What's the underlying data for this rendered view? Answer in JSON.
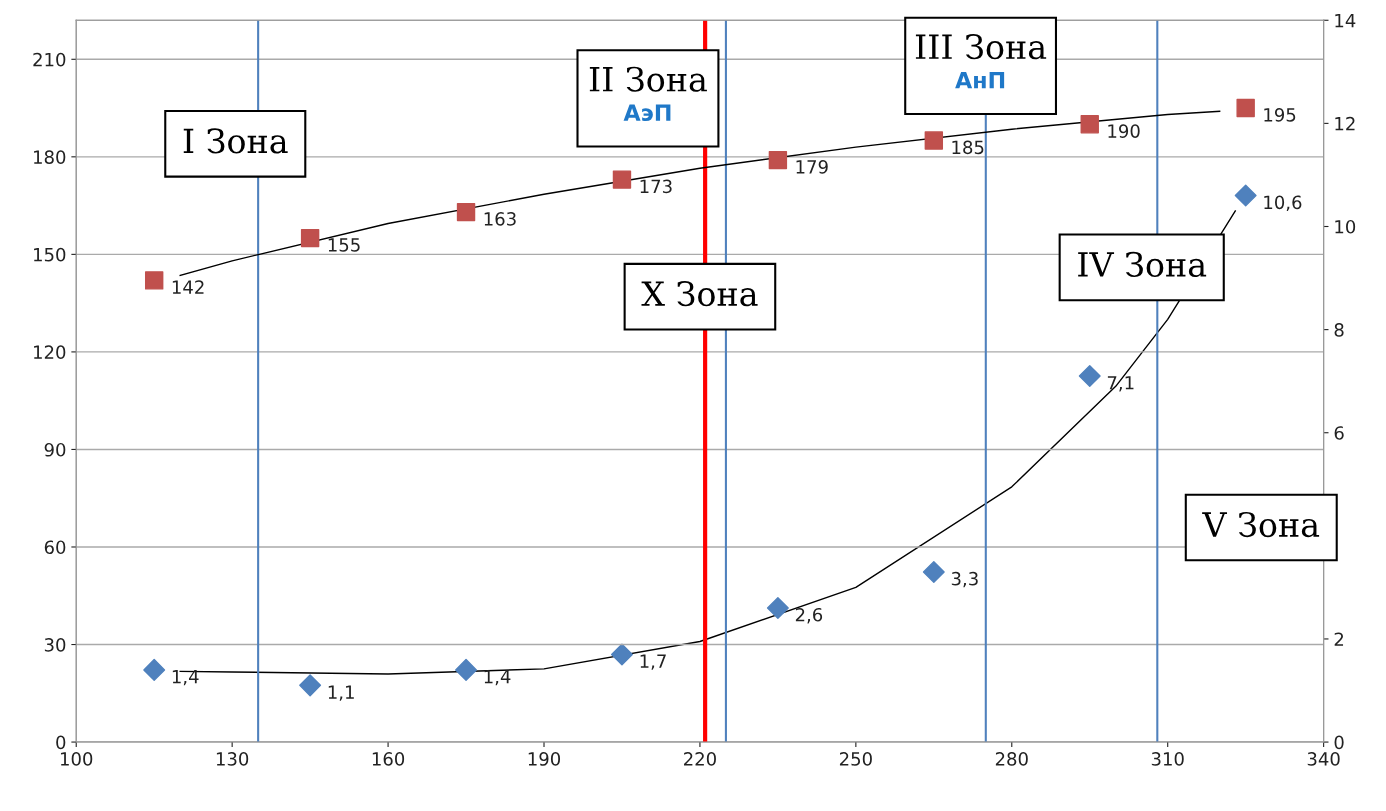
{
  "chart_data": {
    "type": "scatter",
    "xlim": [
      100,
      340
    ],
    "xticks": [
      100,
      130,
      160,
      190,
      220,
      250,
      280,
      310,
      340
    ],
    "ylim": [
      0,
      222
    ],
    "yticks": [
      0,
      30,
      60,
      90,
      120,
      150,
      180,
      210
    ],
    "y2lim": [
      0,
      14
    ],
    "y2ticks": [
      0,
      2,
      {
        "value": 4,
        "label": null
      },
      6,
      8,
      10,
      12,
      14
    ],
    "grid": "y",
    "series": [
      {
        "marker": "square",
        "color": "#c0504d",
        "x": [
          115,
          145,
          175,
          205,
          235,
          265,
          295,
          325
        ],
        "values": [
          142,
          155,
          163,
          173,
          179,
          185,
          190,
          195
        ],
        "value_labels": [
          "142",
          "155",
          "163",
          "173",
          "179",
          "185",
          "190",
          "195"
        ]
      },
      {
        "marker": "diamond",
        "axis": "y2",
        "color": "#4f81bd",
        "x": [
          115,
          145,
          175,
          205,
          235,
          265,
          295,
          325
        ],
        "values": [
          1.4,
          1.1,
          1.4,
          1.7,
          2.6,
          3.3,
          7.1,
          10.6
        ],
        "value_labels": [
          "1,4",
          "1,1",
          "1,4",
          "1,7",
          "2,6",
          "3,3",
          "7,1",
          "10,6"
        ]
      },
      {
        "type": "line",
        "color": "#000000",
        "x": [
          120,
          130,
          160,
          190,
          220,
          250,
          280,
          310,
          320
        ],
        "values": [
          143.5,
          148,
          159.5,
          168.5,
          176.5,
          183,
          188.5,
          193,
          194
        ]
      },
      {
        "type": "line",
        "axis": "y2",
        "color": "#000000",
        "x": [
          120,
          130,
          160,
          190,
          220,
          250,
          280,
          300,
          310,
          323
        ],
        "values": [
          1.37,
          1.36,
          1.32,
          1.42,
          1.95,
          3.0,
          4.95,
          6.9,
          8.2,
          10.3
        ]
      }
    ],
    "ref_lines": [
      {
        "axis": "x",
        "value": 135,
        "color": "#4f81bd"
      },
      {
        "axis": "x",
        "value": 225,
        "color": "#4f81bd"
      },
      {
        "axis": "x",
        "value": 275,
        "color": "#4f81bd"
      },
      {
        "axis": "x",
        "value": 308,
        "color": "#4f81bd"
      },
      {
        "axis": "x",
        "value": 221,
        "color": "#ff0000"
      }
    ],
    "annotations": [
      "I Зона",
      "II Зона\nАэП",
      "III Зона\nАнП",
      "X Зона",
      "IV Зона",
      "V Зона"
    ]
  }
}
